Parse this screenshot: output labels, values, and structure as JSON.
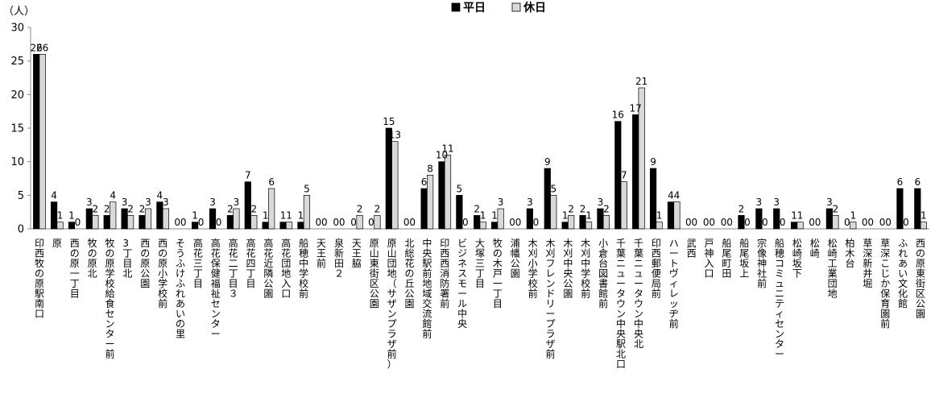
{
  "chart_data": {
    "type": "bar",
    "y_unit_label": "（人）",
    "ylim": [
      0,
      30
    ],
    "yticks": [
      0,
      5,
      10,
      15,
      20,
      25,
      30
    ],
    "legend_position": "top-center",
    "grid": false,
    "categories": [
      "印西牧の原駅南口",
      "原",
      "西の原一丁目",
      "牧の原北",
      "牧の原学校給食センター前",
      "3丁目北",
      "西の原公園",
      "西の原小学校前",
      "そうふけふれあいの里",
      "高花三丁目",
      "高花保健福祉センター",
      "高花二丁目３",
      "高花四丁目",
      "高花近隣公園",
      "高花団地入口",
      "船穂中学校前",
      "天王前",
      "泉新田２",
      "天王脇",
      "原山東街区公園",
      "原山団地（サザンプラザ前）",
      "北総花の丘公園",
      "中央駅前地域交流館前",
      "印西西消防署前",
      "ビジネスモール中央",
      "大塚三丁目",
      "牧の木戸一丁目",
      "浦幡公園",
      "木刈小学校前",
      "木刈フレンドリープラザ前",
      "木刈中央公園",
      "木刈中学校前",
      "小倉台図書館前",
      "千葉ニュータウン中央駅北口",
      "千葉ニュータウン中央北",
      "印西郵便局前",
      "ハートヴィレッヂ前",
      "武西",
      "戸神入口",
      "船尾町田",
      "船尾坂上",
      "宗像神社前",
      "船穂コミュニティセンター",
      "松崎坂下",
      "松崎",
      "松崎工業団地",
      "柏木台",
      "草深新井堀",
      "草深こじか保育園前",
      "ふれあい文化館",
      "西の原東街区公園"
    ],
    "series": [
      {
        "name": "平日",
        "color": "#000000",
        "values": [
          26,
          4,
          1,
          3,
          2,
          3,
          2,
          4,
          0,
          1,
          3,
          2,
          7,
          1,
          1,
          1,
          0,
          0,
          0,
          0,
          15,
          0,
          6,
          10,
          5,
          2,
          1,
          0,
          3,
          9,
          1,
          2,
          3,
          16,
          17,
          9,
          4,
          0,
          0,
          0,
          2,
          3,
          3,
          1,
          0,
          3,
          0,
          0,
          0,
          6,
          6
        ]
      },
      {
        "name": "休日",
        "color": "#d9d9d9",
        "values": [
          26,
          1,
          0,
          2,
          4,
          2,
          3,
          3,
          0,
          0,
          0,
          3,
          2,
          6,
          1,
          5,
          0,
          0,
          2,
          2,
          13,
          0,
          8,
          11,
          0,
          1,
          3,
          0,
          0,
          5,
          2,
          1,
          2,
          7,
          21,
          1,
          4,
          0,
          0,
          0,
          0,
          0,
          0,
          1,
          0,
          2,
          1,
          0,
          0,
          0,
          1
        ]
      }
    ]
  }
}
